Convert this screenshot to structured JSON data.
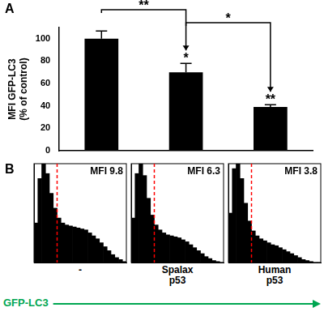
{
  "chart_data": [
    {
      "type": "bar",
      "panel": "A",
      "categories": [
        null,
        null,
        null
      ],
      "values": [
        100,
        70,
        39
      ],
      "errors": [
        7,
        8,
        2
      ],
      "color": "#000000",
      "ylabel": [
        "MFI GFP-LC3",
        "(% of control)"
      ],
      "ylim": [
        0,
        110
      ],
      "yticks": [
        0,
        20,
        40,
        60,
        80,
        100
      ],
      "tick_labels": "y",
      "grid": false,
      "bar_marks": [
        null,
        "*",
        "**"
      ],
      "comparisons": [
        {
          "from": 0,
          "to": 1,
          "text": "**"
        },
        {
          "from": 1,
          "to": 2,
          "text": "*"
        }
      ]
    },
    {
      "type": "histogram",
      "panel": "B",
      "annotation": "MFI 9.8",
      "xlabel": [
        "-"
      ],
      "bins": [
        0,
        1,
        2,
        3,
        4,
        5,
        6,
        7,
        8,
        9,
        10,
        11,
        12,
        13,
        14,
        15,
        16,
        17,
        18,
        19,
        20,
        21,
        22,
        23,
        24
      ],
      "counts": [
        40,
        85,
        100,
        90,
        70,
        55,
        45,
        40,
        38,
        37,
        36,
        35,
        34,
        33,
        30,
        27,
        24,
        20,
        16,
        12,
        8,
        5,
        3,
        1
      ],
      "color": "#000000",
      "xlim": [
        0,
        24
      ],
      "ylim": [
        0,
        100
      ],
      "tick_labels": false,
      "grid": false,
      "gate": 6
    },
    {
      "type": "histogram",
      "annotation": "MFI 6.3",
      "xlabel": [
        "Spalax",
        "p53"
      ],
      "bins": [
        0,
        1,
        2,
        3,
        4,
        5,
        6,
        7,
        8,
        9,
        10,
        11,
        12,
        13,
        14,
        15,
        16,
        17,
        18,
        19,
        20,
        21,
        22,
        23,
        24
      ],
      "counts": [
        45,
        90,
        100,
        88,
        65,
        48,
        38,
        33,
        30,
        28,
        27,
        26,
        25,
        23,
        21,
        18,
        15,
        12,
        9,
        6,
        4,
        2,
        1,
        0
      ],
      "color": "#000000",
      "xlim": [
        0,
        24
      ],
      "ylim": [
        0,
        100
      ],
      "tick_labels": false,
      "grid": false,
      "gate": 6
    },
    {
      "type": "histogram",
      "annotation": "MFI 3.8",
      "xlabel": [
        "Human",
        "p53"
      ],
      "bins": [
        0,
        1,
        2,
        3,
        4,
        5,
        6,
        7,
        8,
        9,
        10,
        11,
        12,
        13,
        14,
        15,
        16,
        17,
        18,
        19,
        20,
        21,
        22,
        23,
        24
      ],
      "counts": [
        50,
        95,
        100,
        85,
        60,
        42,
        32,
        27,
        24,
        22,
        20,
        18,
        17,
        15,
        13,
        11,
        9,
        7,
        5,
        3,
        2,
        1,
        0,
        0
      ],
      "color": "#000000",
      "xlim": [
        0,
        24
      ],
      "ylim": [
        0,
        100
      ],
      "tick_labels": false,
      "grid": false,
      "gate": 6
    }
  ],
  "footer": {
    "text": "GFP-LC3",
    "color": "#00a651"
  }
}
